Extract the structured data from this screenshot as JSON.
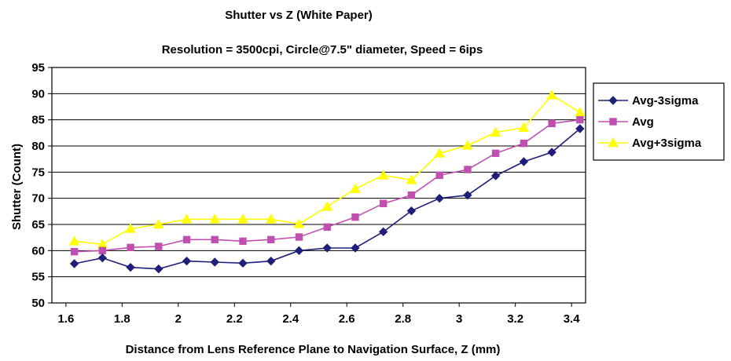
{
  "chart_data": {
    "type": "line",
    "title": "Shutter vs Z (White Paper)",
    "subtitle": "Resolution = 3500cpi, Circle@7.5\" diameter, Speed = 6ips",
    "xlabel": "Distance from Lens Reference Plane to Navigation Surface, Z (mm)",
    "ylabel": "Shutter (Count)",
    "xlim": [
      1.55,
      3.45
    ],
    "ylim": [
      50,
      95
    ],
    "xticks": [
      1.6,
      1.8,
      2,
      2.2,
      2.4,
      2.6,
      2.8,
      3,
      3.2,
      3.4
    ],
    "xtick_labels": [
      "1.6",
      "1.8",
      "2",
      "2.2",
      "2.4",
      "2.6",
      "2.8",
      "3",
      "3.2",
      "3.4"
    ],
    "yticks": [
      50,
      55,
      60,
      65,
      70,
      75,
      80,
      85,
      90,
      95
    ],
    "ytick_labels": [
      "50",
      "55",
      "60",
      "65",
      "70",
      "75",
      "80",
      "85",
      "90",
      "95"
    ],
    "grid": true,
    "legend_position": "right",
    "x": [
      1.63,
      1.73,
      1.83,
      1.93,
      2.03,
      2.13,
      2.23,
      2.33,
      2.43,
      2.53,
      2.63,
      2.73,
      2.83,
      2.93,
      3.03,
      3.13,
      3.23,
      3.33,
      3.43
    ],
    "series": [
      {
        "name": "Avg-3sigma",
        "color": "#1f1f7a",
        "marker": "diamond",
        "values": [
          57.5,
          58.6,
          56.8,
          56.5,
          58.0,
          57.8,
          57.6,
          58.0,
          60.0,
          60.5,
          60.5,
          63.6,
          67.6,
          70.0,
          70.6,
          74.3,
          77.0,
          78.8,
          83.3
        ]
      },
      {
        "name": "Avg",
        "color": "#c050b0",
        "marker": "square",
        "values": [
          59.8,
          60.0,
          60.6,
          60.8,
          62.1,
          62.1,
          61.8,
          62.1,
          62.6,
          64.5,
          66.4,
          69.0,
          70.6,
          74.4,
          75.5,
          78.6,
          80.5,
          84.3,
          85.0
        ]
      },
      {
        "name": "Avg+3sigma",
        "color": "#ffff00",
        "marker": "triangle",
        "values": [
          61.8,
          61.2,
          64.2,
          65.0,
          66.0,
          66.0,
          66.0,
          66.0,
          65.1,
          68.4,
          71.8,
          74.4,
          73.5,
          78.6,
          80.1,
          82.6,
          83.5,
          89.7,
          86.4
        ]
      }
    ]
  }
}
